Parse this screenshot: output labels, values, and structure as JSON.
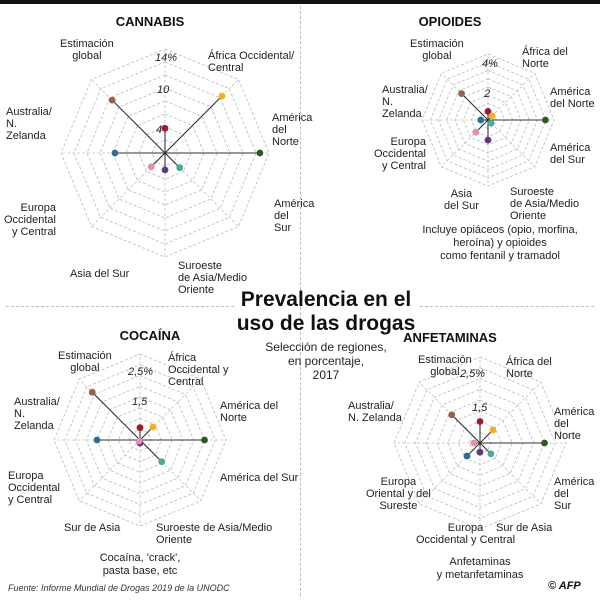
{
  "header": {
    "title": "Prevalencia en el\nuso de las drogas",
    "subtitle": "Selección de regiones,\nen porcentaje,\n2017"
  },
  "footer": {
    "source": "Fuente: Informe Mundial de Drogas 2019 de la UNODC",
    "logo": "© AFP"
  },
  "colors": {
    "estimacion_global": "#9b1c2e",
    "africa_occidental": "#f2b01e",
    "america_norte": "#2f5a1f",
    "america_sur": "#49a99a",
    "suroeste_asia": "#5e3a7d",
    "asia_sur": "#e48fae",
    "europa": "#2c6d93",
    "europa_oriental": "#2c6d93",
    "australia": "#9a6248"
  },
  "chart_data": [
    {
      "id": "cannabis",
      "type": "radar",
      "title": "CANNABIS",
      "unit": "%",
      "rmax": 16,
      "ticks": [
        {
          "value": 4,
          "label": "4"
        },
        {
          "value": 10,
          "label": "10"
        },
        {
          "value": 14,
          "label": "14%"
        }
      ],
      "axes": [
        {
          "label": "Estimación\nglobal",
          "value": 3.8,
          "color": "#9b1c2e"
        },
        {
          "label": "África Occidental/\nCentral",
          "value": 12.4,
          "color": "#f2b01e"
        },
        {
          "label": "América\ndel\nNorte",
          "value": 14.6,
          "color": "#2f5a1f"
        },
        {
          "label": "América\ndel\nSur",
          "value": 3.2,
          "color": "#49a99a"
        },
        {
          "label": "Suroeste\nde Asia/Medio\nOriente",
          "value": 2.6,
          "color": "#5e3a7d"
        },
        {
          "label": "Asia del Sur",
          "value": 3.0,
          "color": "#e48fae"
        },
        {
          "label": "Europa\nOccidental\ny Central",
          "value": 7.7,
          "color": "#2c6d93"
        },
        {
          "label": "Australia/\nN.\nZelanda",
          "value": 11.5,
          "color": "#9a6248"
        }
      ]
    },
    {
      "id": "opioides",
      "type": "radar",
      "title": "OPIOIDES",
      "unit": "%",
      "rmax": 4.6,
      "ticks": [
        {
          "value": 2,
          "label": "2"
        },
        {
          "value": 4,
          "label": "4%"
        }
      ],
      "axes": [
        {
          "label": "Estimación\nglobal",
          "value": 0.6,
          "color": "#9b1c2e"
        },
        {
          "label": "África del\nNorte",
          "value": 0.4,
          "color": "#f2b01e"
        },
        {
          "label": "América\ndel Norte",
          "value": 4.0,
          "color": "#2f5a1f"
        },
        {
          "label": "América\ndel Sur",
          "value": 0.3,
          "color": "#49a99a"
        },
        {
          "label": "Suroeste\nde Asia/Medio\nOriente",
          "value": 1.4,
          "color": "#5e3a7d"
        },
        {
          "label": "Asia\ndel Sur",
          "value": 1.2,
          "color": "#e48fae"
        },
        {
          "label": "Europa\nOccidental\ny Central",
          "value": 0.5,
          "color": "#2c6d93"
        },
        {
          "label": "Australia/\nN.\nZelanda",
          "value": 2.6,
          "color": "#9a6248"
        }
      ],
      "note": "Incluye opiáceos (opio, morfina,\nheroína) y opioides\ncomo fentanil y tramadol"
    },
    {
      "id": "cocaina",
      "type": "radar",
      "title": "COCAÍNA",
      "unit": "%",
      "rmax": 2.8,
      "ticks": [
        {
          "value": 1.5,
          "label": "1,5"
        },
        {
          "value": 2.5,
          "label": "2,5%"
        }
      ],
      "axes": [
        {
          "label": "Estimación\nglobal",
          "value": 0.4,
          "color": "#9b1c2e"
        },
        {
          "label": "África\nOccidental y\nCentral",
          "value": 0.6,
          "color": "#f2b01e"
        },
        {
          "label": "América del Norte",
          "value": 2.1,
          "color": "#2f5a1f"
        },
        {
          "label": "América del Sur",
          "value": 1.0,
          "color": "#49a99a"
        },
        {
          "label": "Suroeste de Asia/Medio Oriente",
          "value": 0.1,
          "color": "#5e3a7d"
        },
        {
          "label": "Sur de Asia",
          "value": 0.05,
          "color": "#e48fae"
        },
        {
          "label": "Europa\nOccidental\ny Central",
          "value": 1.4,
          "color": "#2c6d93"
        },
        {
          "label": "Australia/\nN.\nZelanda",
          "value": 2.2,
          "color": "#9a6248"
        }
      ],
      "note": "Cocaína, 'crack',\npasta base, etc"
    },
    {
      "id": "anfetaminas",
      "type": "radar",
      "title": "ANFETAMINAS",
      "unit": "%",
      "rmax": 2.8,
      "ticks": [
        {
          "value": 1.5,
          "label": "1,5"
        },
        {
          "value": 2.5,
          "label": "2,5%"
        }
      ],
      "axes": [
        {
          "label": "Estimación\nglobal",
          "value": 0.7,
          "color": "#9b1c2e"
        },
        {
          "label": "África del\nNorte",
          "value": 0.6,
          "color": "#f2b01e"
        },
        {
          "label": "América\ndel\nNorte",
          "value": 2.1,
          "color": "#2f5a1f"
        },
        {
          "label": "América\ndel\nSur",
          "value": 0.5,
          "color": "#49a99a"
        },
        {
          "label": "Sur de Asia",
          "value": 0.3,
          "color": "#5e3a7d"
        },
        {
          "label": "Europa\nOccidental y Central",
          "value": 0.6,
          "color": "#2c6d93"
        },
        {
          "label": "Europa\nOriental y del\nSureste",
          "value": 0.2,
          "color": "#e48fae"
        },
        {
          "label": "Australia/\nN. Zelanda",
          "value": 1.3,
          "color": "#9a6248"
        }
      ],
      "note": "Anfetaminas\ny metanfetaminas"
    }
  ]
}
